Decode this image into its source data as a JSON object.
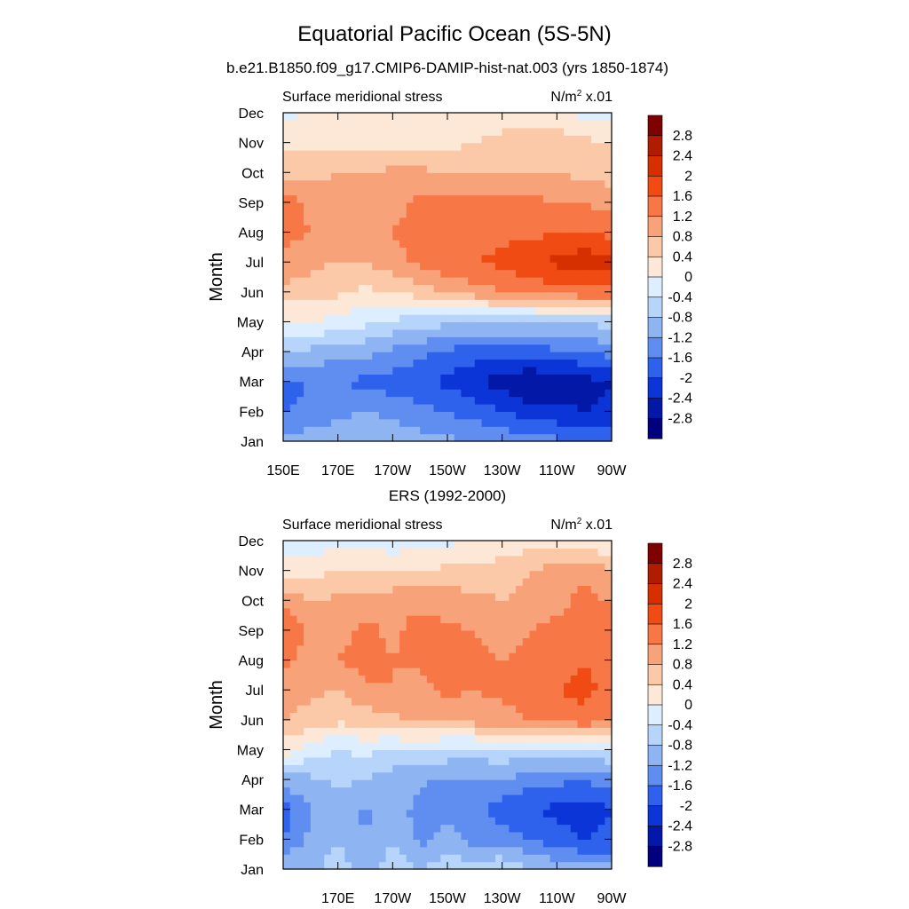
{
  "figure": {
    "title": "Equatorial Pacific Ocean (5S-5N)",
    "subtitle": "b.e21.B1850.f09_g17.CMIP6-DAMIP-hist-nat.003 (yrs 1850-1874)"
  },
  "palette": {
    "levels": [
      "2.8",
      "2.4",
      "2",
      "1.6",
      "1.2",
      "0.8",
      "0.4",
      "0",
      "-0.4",
      "-0.8",
      "-1.2",
      "-1.6",
      "-2",
      "-2.4",
      "-2.8"
    ],
    "colors": [
      "#7f0000",
      "#b01c00",
      "#d73000",
      "#f04b13",
      "#f77747",
      "#f8a27a",
      "#fbc8a8",
      "#fde8d7",
      "#dceeff",
      "#b7d4fa",
      "#8fb4f2",
      "#5f8ef0",
      "#2e62ec",
      "#0b35d6",
      "#0318a6",
      "#00007f"
    ]
  },
  "chart_data": [
    {
      "type": "heatmap",
      "panel_title": "",
      "left_string": "Surface meridional stress",
      "right_string": "N/m",
      "right_sup": "2",
      "right_suffix": " x.01",
      "ylabel": "Month",
      "x_ticks": [
        "150E",
        "170E",
        "170W",
        "150W",
        "130W",
        "110W",
        "90W"
      ],
      "y_ticks": [
        "Jan",
        "Feb",
        "Mar",
        "Apr",
        "May",
        "Jun",
        "Jul",
        "Aug",
        "Sep",
        "Oct",
        "Nov",
        "Dec"
      ],
      "x": [
        150,
        160,
        170,
        180,
        190,
        200,
        210,
        220,
        230,
        240,
        250,
        260,
        270
      ],
      "z": [
        [
          -1.0,
          -1.0,
          -0.9,
          -0.8,
          -0.9,
          -1.0,
          -1.1,
          -1.2,
          -1.3,
          -1.4,
          -1.5,
          -1.7,
          -1.7
        ],
        [
          -1.6,
          -1.5,
          -1.3,
          -1.2,
          -1.3,
          -1.5,
          -1.6,
          -1.8,
          -2.0,
          -2.2,
          -2.3,
          -2.4,
          -2.3
        ],
        [
          -1.7,
          -1.6,
          -1.6,
          -1.7,
          -1.8,
          -1.9,
          -2.1,
          -2.3,
          -2.6,
          -2.8,
          -2.7,
          -2.6,
          -2.4
        ],
        [
          -0.8,
          -0.9,
          -1.0,
          -1.1,
          -1.3,
          -1.5,
          -1.7,
          -1.8,
          -1.8,
          -1.8,
          -1.7,
          -1.6,
          -1.4
        ],
        [
          -0.1,
          0.0,
          -0.2,
          -0.3,
          -0.5,
          -0.6,
          -0.7,
          -0.7,
          -0.8,
          -0.8,
          -0.8,
          -0.7,
          -0.7
        ],
        [
          0.7,
          0.6,
          0.5,
          0.3,
          0.4,
          0.6,
          0.8,
          1.0,
          1.2,
          1.3,
          1.4,
          1.5,
          1.5
        ],
        [
          1.1,
          0.9,
          0.8,
          0.8,
          1.0,
          1.3,
          1.5,
          1.6,
          1.7,
          1.9,
          2.1,
          2.3,
          2.2
        ],
        [
          1.3,
          1.2,
          1.1,
          1.0,
          1.2,
          1.4,
          1.4,
          1.4,
          1.5,
          1.5,
          1.6,
          1.6,
          1.5
        ],
        [
          1.4,
          1.1,
          1.0,
          0.9,
          1.0,
          1.3,
          1.3,
          1.3,
          1.3,
          1.3,
          1.2,
          1.2,
          1.0
        ],
        [
          0.7,
          0.7,
          0.8,
          0.8,
          0.9,
          0.9,
          0.8,
          0.8,
          0.8,
          0.8,
          0.8,
          0.7,
          0.6
        ],
        [
          0.3,
          0.3,
          0.3,
          0.3,
          0.3,
          0.3,
          0.3,
          0.4,
          0.6,
          0.7,
          0.7,
          0.5,
          0.4
        ],
        [
          -0.1,
          0.0,
          0.1,
          0.1,
          0.1,
          0.1,
          0.1,
          0.1,
          0.1,
          0.1,
          0.0,
          -0.1,
          -0.2
        ]
      ]
    },
    {
      "type": "heatmap",
      "panel_title": "ERS (1992-2000)",
      "left_string": "Surface meridional stress",
      "right_string": "N/m",
      "right_sup": "2",
      "right_suffix": " x.01",
      "ylabel": "Month",
      "x_ticks": [
        "",
        "170E",
        "170W",
        "150W",
        "130W",
        "110W",
        "90W"
      ],
      "y_ticks": [
        "Jan",
        "Feb",
        "Mar",
        "Apr",
        "May",
        "Jun",
        "Jul",
        "Aug",
        "Sep",
        "Oct",
        "Nov",
        "Dec"
      ],
      "x": [
        150,
        160,
        170,
        180,
        190,
        200,
        210,
        220,
        230,
        240,
        250,
        260,
        270
      ],
      "z": [
        [
          -0.8,
          -0.9,
          -0.6,
          -0.9,
          -0.6,
          -0.8,
          -0.5,
          -0.6,
          -0.4,
          -0.8,
          -0.9,
          -1.0,
          -1.1
        ],
        [
          -1.6,
          -1.1,
          -0.8,
          -1.2,
          -0.8,
          -1.3,
          -1.0,
          -1.4,
          -1.4,
          -1.6,
          -1.8,
          -2.0,
          -1.9
        ],
        [
          -1.8,
          -1.2,
          -0.9,
          -1.3,
          -0.9,
          -1.4,
          -1.4,
          -1.5,
          -1.8,
          -2.0,
          -2.1,
          -2.2,
          -2.0
        ],
        [
          -1.0,
          -0.9,
          -0.7,
          -0.8,
          -1.0,
          -1.1,
          -1.3,
          -1.2,
          -1.2,
          -1.4,
          -1.5,
          -1.6,
          -1.4
        ],
        [
          0.2,
          -0.2,
          -0.4,
          -0.3,
          -0.5,
          -0.4,
          -0.5,
          -0.6,
          -0.5,
          -0.6,
          -0.6,
          -0.5,
          -0.4
        ],
        [
          0.8,
          0.6,
          0.5,
          0.6,
          0.7,
          0.9,
          0.8,
          1.0,
          1.0,
          1.2,
          1.3,
          1.5,
          1.3
        ],
        [
          1.0,
          0.9,
          0.8,
          1.1,
          1.2,
          1.0,
          1.3,
          1.2,
          1.3,
          1.5,
          1.6,
          1.7,
          1.5
        ],
        [
          1.3,
          1.0,
          1.2,
          1.4,
          1.2,
          1.3,
          1.5,
          1.3,
          1.2,
          1.4,
          1.4,
          1.6,
          1.4
        ],
        [
          1.7,
          1.1,
          1.0,
          1.3,
          1.1,
          1.4,
          1.3,
          1.2,
          1.0,
          1.2,
          1.3,
          1.5,
          1.3
        ],
        [
          1.0,
          0.8,
          0.9,
          1.0,
          1.1,
          1.1,
          1.0,
          0.9,
          0.8,
          0.9,
          1.1,
          1.3,
          1.2
        ],
        [
          0.3,
          0.3,
          0.4,
          0.4,
          0.3,
          0.4,
          0.5,
          0.6,
          0.6,
          0.8,
          1.0,
          1.1,
          0.8
        ],
        [
          -0.3,
          -0.3,
          -0.1,
          -0.2,
          -0.2,
          -0.1,
          -0.1,
          0.0,
          0.1,
          0.2,
          0.2,
          0.1,
          0.0
        ]
      ]
    }
  ]
}
